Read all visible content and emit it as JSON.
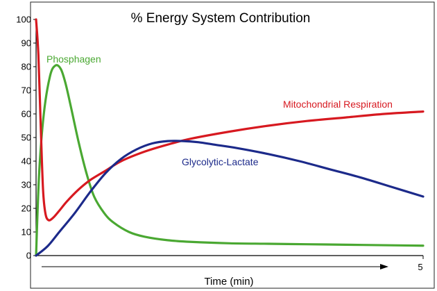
{
  "chart_data": {
    "type": "line",
    "title": "% Energy System Contribution",
    "xlabel": "Time (min)",
    "ylabel": "",
    "xlim": [
      0,
      5
    ],
    "ylim": [
      0,
      100
    ],
    "y_ticks": [
      "0",
      "10",
      "20",
      "30",
      "40",
      "50",
      "60",
      "70",
      "80",
      "90",
      "100"
    ],
    "x_ticks": [
      "5"
    ],
    "grid": false,
    "legend": "inline labels",
    "series": [
      {
        "name": "Phosphagen",
        "color": "#4aa832",
        "x": [
          0,
          0.04,
          0.1,
          0.18,
          0.25,
          0.32,
          0.38,
          0.45,
          0.55,
          0.65,
          0.75,
          0.88,
          1.0,
          1.2,
          1.4,
          1.7,
          2.0,
          2.5,
          3.0,
          3.5,
          4.0,
          4.5,
          5.0
        ],
        "y": [
          0,
          35,
          60,
          76,
          80.5,
          79,
          73,
          63,
          48,
          35,
          25,
          18,
          14,
          10,
          8,
          6.5,
          5.8,
          5.2,
          5,
          4.8,
          4.6,
          4.4,
          4.2
        ]
      },
      {
        "name": "Mitochondrial Respiration",
        "color": "#d71920",
        "x": [
          0,
          0.03,
          0.06,
          0.09,
          0.12,
          0.16,
          0.22,
          0.3,
          0.4,
          0.55,
          0.7,
          0.9,
          1.1,
          1.4,
          1.7,
          2.0,
          2.5,
          3.0,
          3.5,
          4.0,
          4.5,
          5.0
        ],
        "y": [
          100,
          85,
          55,
          28,
          18,
          15,
          16,
          19,
          23,
          28,
          32,
          36,
          40,
          44,
          47,
          49.5,
          52.5,
          55,
          57,
          58.5,
          60,
          61
        ]
      },
      {
        "name": "Glycolytic-Lactate",
        "color": "#1c2a8a",
        "x": [
          0,
          0.15,
          0.3,
          0.5,
          0.7,
          0.9,
          1.1,
          1.3,
          1.5,
          1.7,
          1.9,
          2.1,
          2.3,
          2.6,
          3.0,
          3.4,
          3.8,
          4.2,
          4.6,
          5.0
        ],
        "y": [
          0,
          4,
          10,
          18,
          27,
          35,
          41,
          45,
          47.5,
          48.5,
          48.5,
          48,
          47,
          45.5,
          43,
          40,
          36.5,
          33,
          29,
          25
        ]
      }
    ]
  }
}
